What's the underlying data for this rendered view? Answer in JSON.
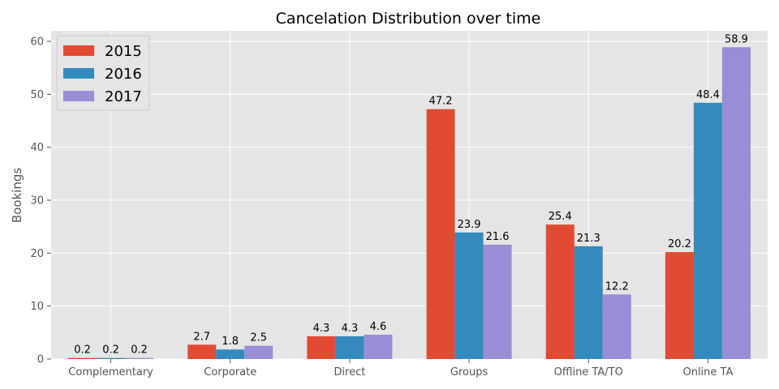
{
  "chart_data": {
    "type": "bar",
    "title": "Cancelation Distribution over time",
    "xlabel": "",
    "ylabel": "Bookings",
    "ylim": [
      0,
      62
    ],
    "yticks": [
      0,
      10,
      20,
      30,
      40,
      50,
      60
    ],
    "grid": true,
    "legend": "top-left",
    "categories": [
      "Complementary",
      "Corporate",
      "Direct",
      "Groups",
      "Offline TA/TO",
      "Online TA"
    ],
    "series": [
      {
        "name": "2015",
        "color": "#E24A33",
        "values": [
          0.2,
          2.7,
          4.3,
          47.2,
          25.4,
          20.2
        ]
      },
      {
        "name": "2016",
        "color": "#348ABD",
        "values": [
          0.2,
          1.8,
          4.3,
          23.9,
          21.3,
          48.4
        ]
      },
      {
        "name": "2017",
        "color": "#988ED5",
        "values": [
          0.2,
          2.5,
          4.6,
          21.6,
          12.2,
          58.9
        ]
      }
    ]
  }
}
